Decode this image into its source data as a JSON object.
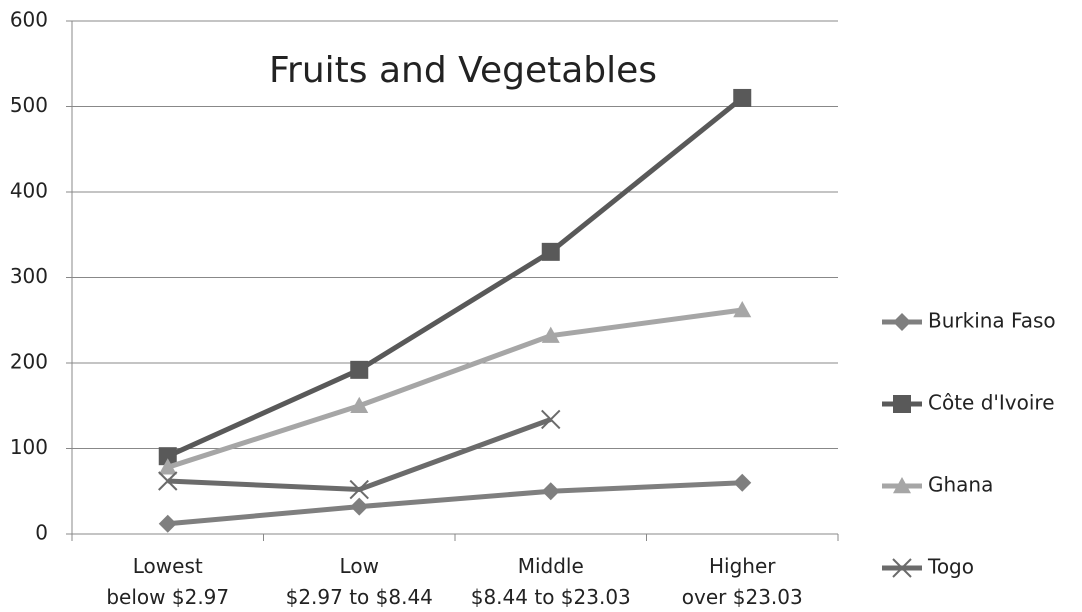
{
  "chart_data": {
    "type": "line",
    "title": "Fruits and Vegetables",
    "categories": [
      "Lowest\nbelow $2.97",
      "Low\n$2.97 to $8.44",
      "Middle\n$8.44 to $23.03",
      "Higher\nover $23.03"
    ],
    "series": [
      {
        "name": "Burkina Faso",
        "color": "#7f7f7f",
        "marker": "diamond",
        "values": [
          12,
          32,
          50,
          60
        ]
      },
      {
        "name": "Côte d'Ivoire",
        "color": "#595959",
        "marker": "square",
        "values": [
          91,
          192,
          330,
          510
        ]
      },
      {
        "name": "Ghana",
        "color": "#a6a6a6",
        "marker": "triangle",
        "values": [
          78,
          150,
          232,
          262
        ]
      },
      {
        "name": "Togo",
        "color": "#6b6b6b",
        "marker": "x",
        "values": [
          62,
          52,
          134,
          null
        ]
      }
    ],
    "ylim": [
      0,
      600
    ],
    "yticks": [
      0,
      100,
      200,
      300,
      400,
      500,
      600
    ],
    "grid": true,
    "legend": "right"
  }
}
